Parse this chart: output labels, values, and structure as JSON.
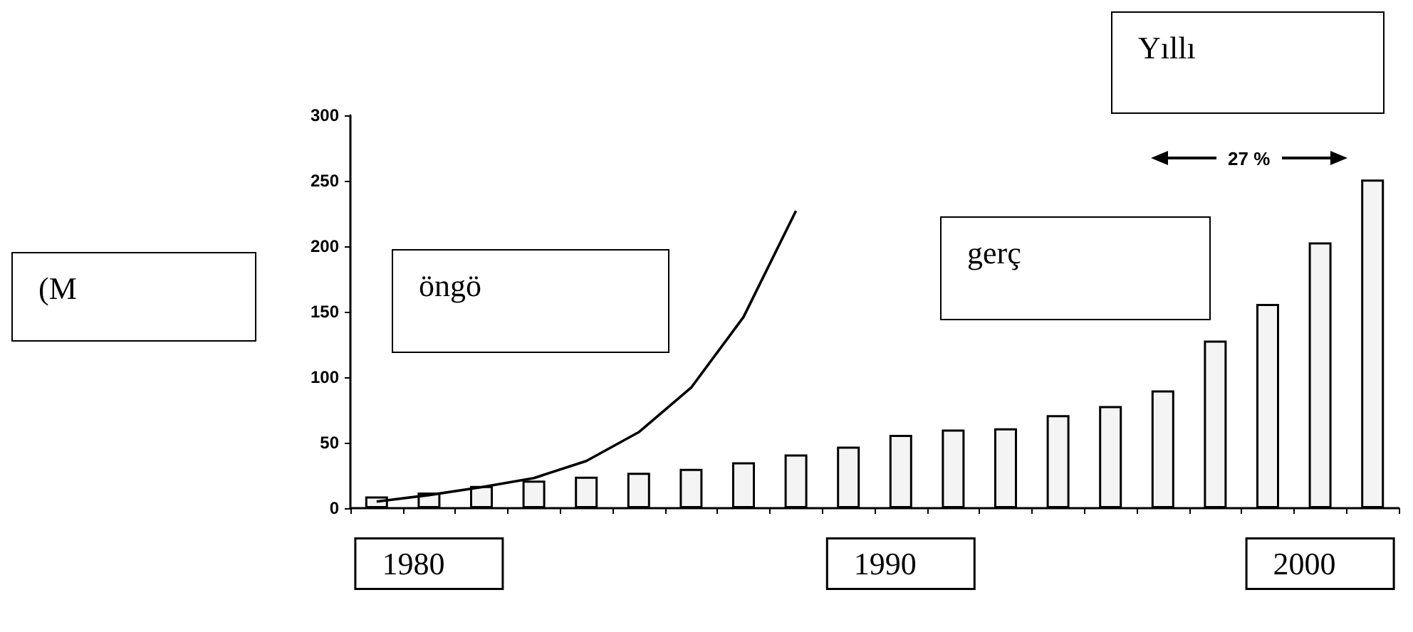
{
  "chart_data": {
    "type": "bar",
    "categories": [
      null,
      "1980",
      null,
      null,
      null,
      null,
      null,
      null,
      null,
      null,
      "1990",
      null,
      null,
      null,
      null,
      null,
      null,
      null,
      "2000",
      null
    ],
    "series": [
      {
        "color": "#f4f4f4",
        "values": [
          9,
          12,
          17,
          21,
          24,
          27,
          30,
          35,
          41,
          47,
          56,
          60,
          61,
          71,
          78,
          90,
          128,
          156,
          203,
          251
        ]
      },
      {
        "type": "line",
        "color": "#000000",
        "values": [
          5,
          10,
          16,
          23,
          36,
          58,
          92,
          146,
          227,
          null,
          null,
          null,
          null,
          null,
          null,
          null,
          null,
          null,
          null,
          null
        ]
      }
    ],
    "ylim": [
      0,
      300
    ],
    "yticks": [
      0,
      50,
      100,
      150,
      200,
      250,
      300
    ],
    "grid": false,
    "marker": "none",
    "annotations": [
      "(M",
      "öngö",
      "gerç",
      "Yıllı",
      "27 %"
    ]
  }
}
